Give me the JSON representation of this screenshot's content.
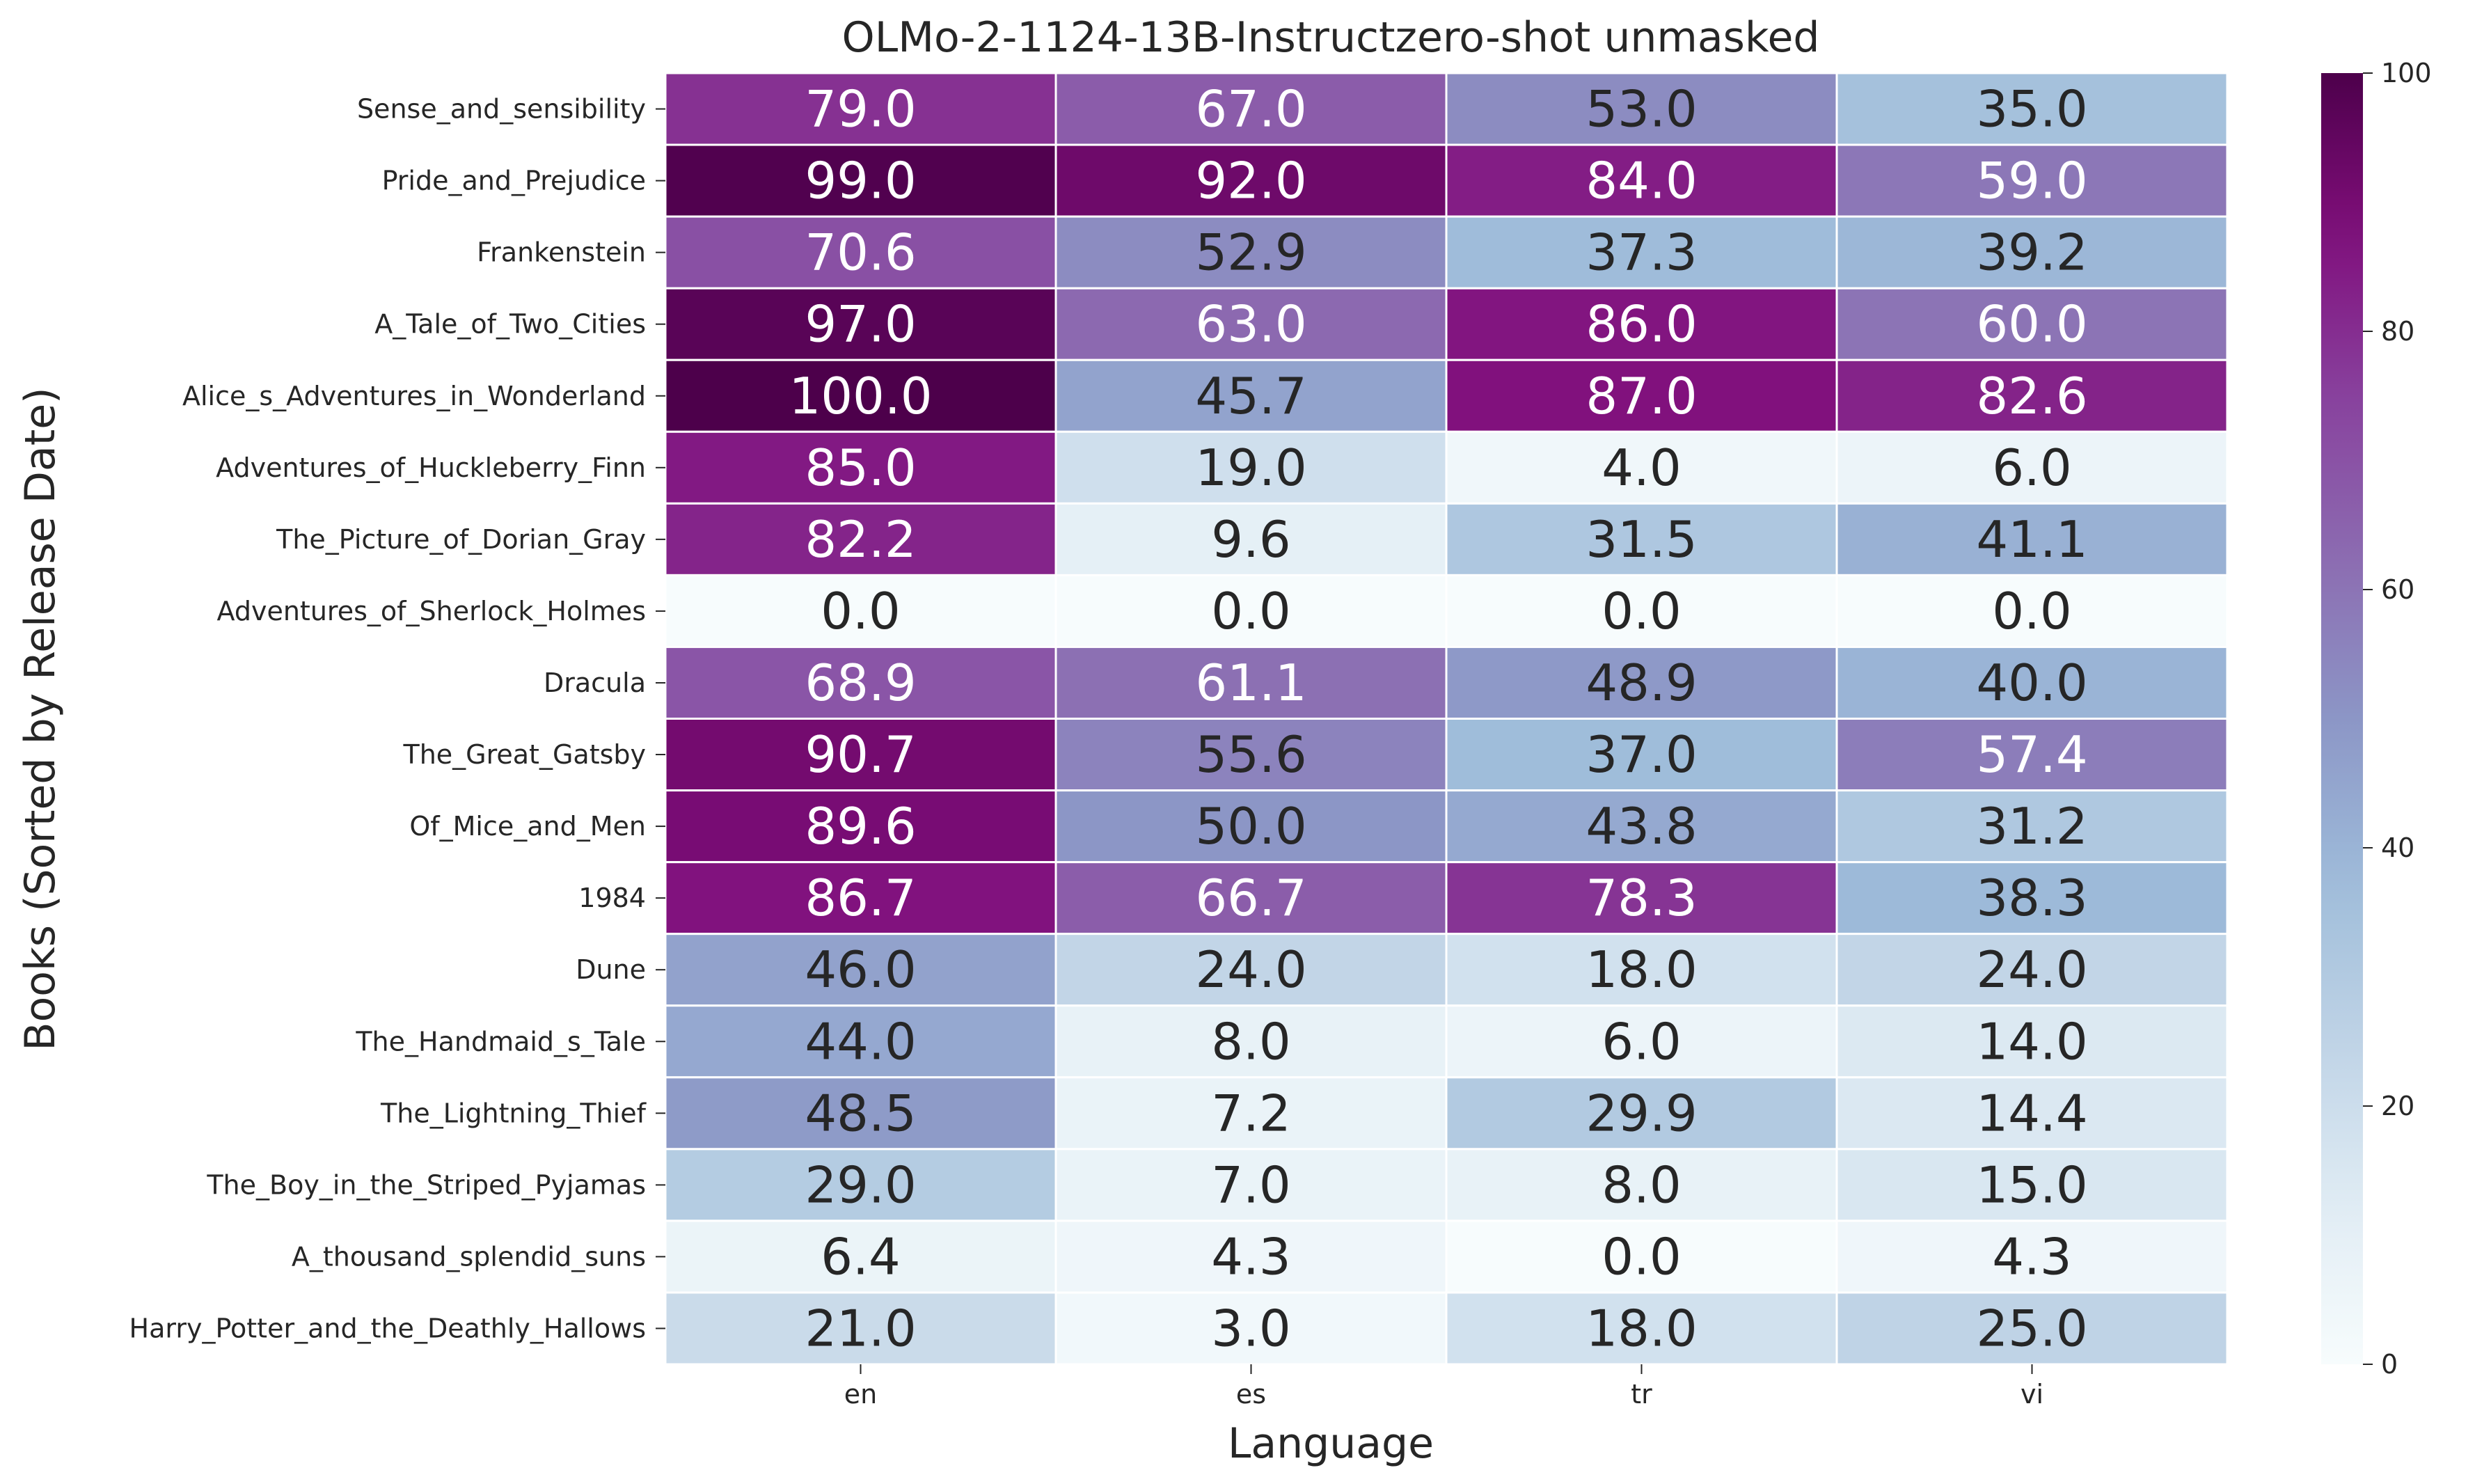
{
  "chart_data": {
    "type": "heatmap",
    "title": "OLMo-2-1124-13B-Instructzero-shot unmasked",
    "xlabel": "Language",
    "ylabel": "Books (Sorted by Release Date)",
    "x_categories": [
      "en",
      "es",
      "tr",
      "vi"
    ],
    "y_categories": [
      "Sense_and_sensibility",
      "Pride_and_Prejudice",
      "Frankenstein",
      "A_Tale_of_Two_Cities",
      "Alice_s_Adventures_in_Wonderland",
      "Adventures_of_Huckleberry_Finn",
      "The_Picture_of_Dorian_Gray",
      "Adventures_of_Sherlock_Holmes",
      "Dracula",
      "The_Great_Gatsby",
      "Of_Mice_and_Men",
      "1984",
      "Dune",
      "The_Handmaid_s_Tale",
      "The_Lightning_Thief",
      "The_Boy_in_the_Striped_Pyjamas",
      "A_thousand_splendid_suns",
      "Harry_Potter_and_the_Deathly_Hallows"
    ],
    "values": [
      [
        79.0,
        67.0,
        53.0,
        35.0
      ],
      [
        99.0,
        92.0,
        84.0,
        59.0
      ],
      [
        70.6,
        52.9,
        37.3,
        39.2
      ],
      [
        97.0,
        63.0,
        86.0,
        60.0
      ],
      [
        100.0,
        45.7,
        87.0,
        82.6
      ],
      [
        85.0,
        19.0,
        4.0,
        6.0
      ],
      [
        82.2,
        9.6,
        31.5,
        41.1
      ],
      [
        0.0,
        0.0,
        0.0,
        0.0
      ],
      [
        68.9,
        61.1,
        48.9,
        40.0
      ],
      [
        90.7,
        55.6,
        37.0,
        57.4
      ],
      [
        89.6,
        50.0,
        43.8,
        31.2
      ],
      [
        86.7,
        66.7,
        78.3,
        38.3
      ],
      [
        46.0,
        24.0,
        18.0,
        24.0
      ],
      [
        44.0,
        8.0,
        6.0,
        14.0
      ],
      [
        48.5,
        7.2,
        29.9,
        14.4
      ],
      [
        29.0,
        7.0,
        8.0,
        15.0
      ],
      [
        6.4,
        4.3,
        0.0,
        4.3
      ],
      [
        21.0,
        3.0,
        18.0,
        25.0
      ]
    ],
    "value_format": "0.0",
    "colormap": "BuPu",
    "vmin": 0,
    "vmax": 100,
    "colorbar_ticks": [
      0,
      20,
      40,
      60,
      80,
      100
    ],
    "grid_color": "#ffffff",
    "text_color_dark": "#262626",
    "text_color_light": "#ffffff"
  }
}
